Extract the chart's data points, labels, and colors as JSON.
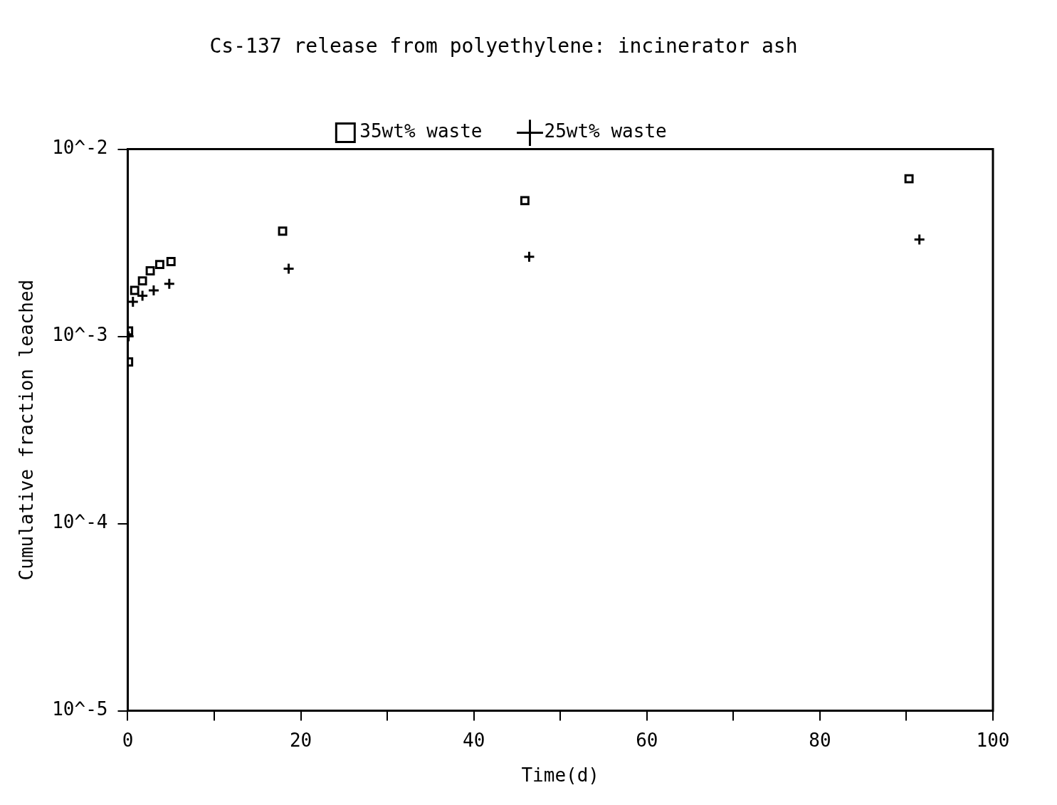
{
  "chart_data": {
    "type": "scatter",
    "title": "Cs-137 release from polyethylene: incinerator ash",
    "xlabel": "Time(d)",
    "ylabel": "Cumulative fraction leached",
    "log": "y",
    "grid": false,
    "legend": "top",
    "xlim": [
      0,
      100
    ],
    "xticks": [
      0,
      {
        "value": 10,
        "label": null
      },
      20,
      {
        "value": 30,
        "label": null
      },
      40,
      {
        "value": 50,
        "label": null
      },
      60,
      {
        "value": 70,
        "label": null
      },
      80,
      {
        "value": 90,
        "label": null
      },
      100
    ],
    "ylim": [
      1e-05,
      0.01
    ],
    "yticks": [
      {
        "value": 1e-05,
        "label": "10^-5"
      },
      {
        "value": 0.0001,
        "label": "10^-4"
      },
      {
        "value": 0.001,
        "label": "10^-3"
      },
      {
        "value": 0.01,
        "label": "10^-2"
      }
    ],
    "series": [
      {
        "name": "35wt% waste",
        "color": "#000000",
        "marker": "square",
        "x": [
          0.1,
          0.1,
          0.8,
          1.7,
          2.6,
          3.7,
          5.0,
          17.9,
          45.9,
          90.3
        ],
        "values": [
          0.00073,
          0.00107,
          0.00176,
          0.00198,
          0.00224,
          0.00242,
          0.00251,
          0.00365,
          0.00531,
          0.00695
        ]
      },
      {
        "name": "25wt% waste",
        "color": "#000000",
        "marker": "cross",
        "x": [
          0.1,
          0.6,
          1.7,
          3.0,
          4.8,
          18.6,
          46.4,
          91.5
        ],
        "values": [
          0.001,
          0.00153,
          0.00165,
          0.00176,
          0.00191,
          0.0023,
          0.00266,
          0.00329
        ]
      }
    ]
  }
}
